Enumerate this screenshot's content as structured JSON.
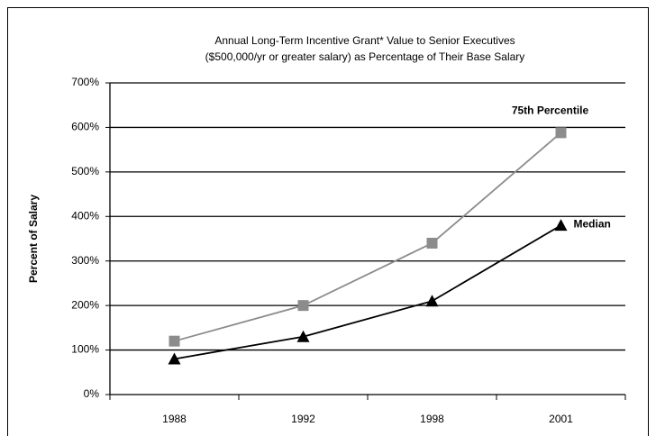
{
  "chart_data": {
    "type": "line",
    "title": [
      "Annual Long-Term Incentive Grant* Value to Senior Executives",
      "($500,000/yr or greater salary) as Percentage of Their Base Salary"
    ],
    "ylabel": "Percent of Salary",
    "categories": [
      "1988",
      "1992",
      "1998",
      "2001"
    ],
    "series": [
      {
        "name": "75th Percentile",
        "color": "#8c8c8c",
        "marker": "square",
        "values": [
          120,
          200,
          340,
          588
        ]
      },
      {
        "name": "Median",
        "color": "#000000",
        "marker": "triangle",
        "values": [
          80,
          130,
          210,
          380
        ]
      }
    ],
    "ylim": [
      0,
      700
    ],
    "yticks": [
      {
        "value": 0,
        "label": "0%"
      },
      {
        "value": 100,
        "label": "100%"
      },
      {
        "value": 200,
        "label": "200%"
      },
      {
        "value": 300,
        "label": "300%"
      },
      {
        "value": 400,
        "label": "400%"
      },
      {
        "value": 500,
        "label": "500%"
      },
      {
        "value": 600,
        "label": "600%"
      },
      {
        "value": 700,
        "label": "700%"
      }
    ],
    "grid": true
  }
}
